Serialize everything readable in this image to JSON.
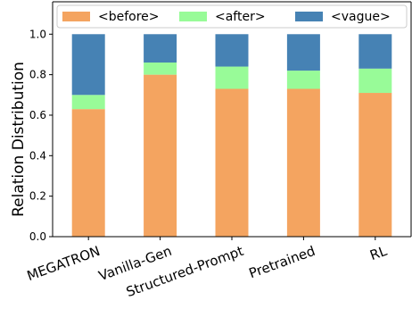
{
  "chart_data": {
    "type": "bar",
    "stacked": true,
    "categories": [
      "MEGATRON",
      "Vanilla-Gen",
      "Structured-Prompt",
      "Pretrained",
      "RL"
    ],
    "series": [
      {
        "name": "<before>",
        "color": "#f4a460",
        "values": [
          0.63,
          0.8,
          0.73,
          0.73,
          0.71
        ]
      },
      {
        "name": "<after>",
        "color": "#98fb98",
        "values": [
          0.07,
          0.06,
          0.11,
          0.09,
          0.12
        ]
      },
      {
        "name": "<vague>",
        "color": "#4682b4",
        "values": [
          0.3,
          0.14,
          0.16,
          0.18,
          0.17
        ]
      }
    ],
    "ylabel": "Relation Distribution",
    "xlabel": "",
    "ylim": [
      0,
      1.16
    ],
    "yticks": [
      "0.0",
      "0.2",
      "0.4",
      "0.6",
      "0.8",
      "1.0"
    ],
    "grid": false,
    "legend": "top"
  }
}
